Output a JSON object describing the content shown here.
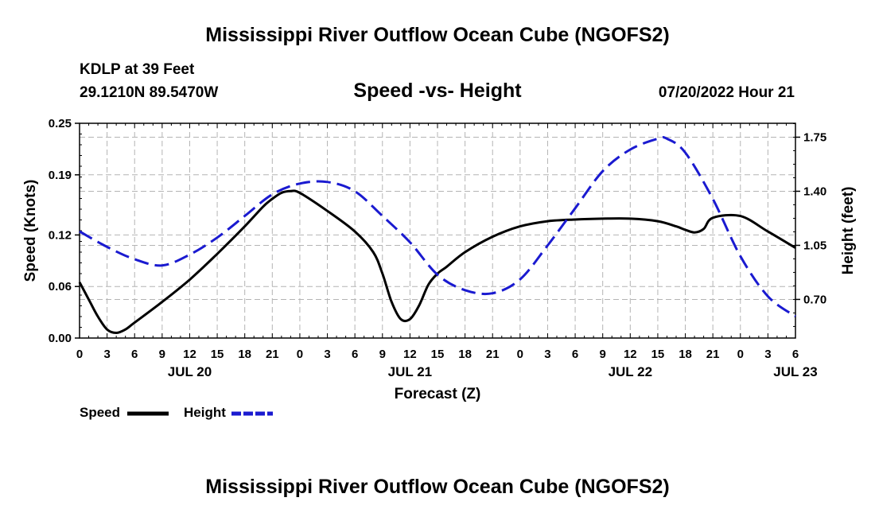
{
  "header": {
    "title": "Mississippi River Outflow Ocean Cube (NGOFS2)",
    "footer_title": "Mississippi River Outflow Ocean Cube (NGOFS2)",
    "station": "KDLP at 39 Feet",
    "coordinates": "29.1210N  89.5470W",
    "subtitle": "Speed -vs- Height",
    "datetime": "07/20/2022 Hour 21"
  },
  "legend": {
    "speed_label": "Speed",
    "height_label": "Height"
  },
  "colors": {
    "speed": "#000000",
    "height": "#1a1ad0",
    "grid": "#b4b4b4"
  },
  "chart_data": {
    "type": "line",
    "xlabel": "Forecast (Z)",
    "ylabel_left": "Speed (Knots)",
    "ylabel_right": "Height (feet)",
    "x_unit": "hours since JUL 20 00Z",
    "xlim": [
      0,
      78
    ],
    "ylim_left": [
      0,
      0.25
    ],
    "ylim_right": [
      0.45,
      1.84
    ],
    "left_ticks": [
      "0.00",
      "0.06",
      "0.12",
      "0.19",
      "0.25"
    ],
    "right_ticks": [
      "0.70",
      "1.05",
      "1.40",
      "1.75"
    ],
    "x_tick_labels": [
      "0",
      "3",
      "6",
      "9",
      "12",
      "15",
      "18",
      "21",
      "0",
      "3",
      "6",
      "9",
      "12",
      "15",
      "18",
      "21",
      "0",
      "3",
      "6",
      "9",
      "12",
      "15",
      "18",
      "21",
      "0",
      "3",
      "6"
    ],
    "day_labels": [
      {
        "hour": 12,
        "label": "JUL 20"
      },
      {
        "hour": 36,
        "label": "JUL 21"
      },
      {
        "hour": 60,
        "label": "JUL 22"
      },
      {
        "hour": 78,
        "label": "JUL 23"
      }
    ],
    "grid": true,
    "series": [
      {
        "name": "Speed",
        "axis": "left",
        "style": "solid",
        "x": [
          0,
          1,
          2,
          3,
          4,
          5,
          6,
          9,
          12,
          15,
          18,
          20,
          21,
          22,
          23,
          24,
          27,
          30,
          32,
          33,
          34,
          35,
          36,
          37,
          38,
          39,
          40,
          42,
          45,
          48,
          51,
          54,
          57,
          60,
          63,
          65,
          66,
          67,
          68,
          69,
          72,
          75,
          78
        ],
        "y": [
          0.065,
          0.045,
          0.025,
          0.01,
          0.006,
          0.01,
          0.018,
          0.042,
          0.068,
          0.098,
          0.13,
          0.153,
          0.162,
          0.169,
          0.171,
          0.169,
          0.148,
          0.124,
          0.1,
          0.075,
          0.042,
          0.022,
          0.022,
          0.038,
          0.062,
          0.075,
          0.083,
          0.1,
          0.118,
          0.13,
          0.136,
          0.138,
          0.139,
          0.139,
          0.136,
          0.13,
          0.126,
          0.123,
          0.127,
          0.14,
          0.142,
          0.124,
          0.105
        ]
      },
      {
        "name": "Height",
        "axis": "right",
        "style": "dashed",
        "x": [
          0,
          3,
          6,
          9,
          12,
          15,
          18,
          21,
          24,
          27,
          30,
          33,
          36,
          39,
          42,
          45,
          48,
          51,
          54,
          57,
          60,
          63,
          64,
          66,
          69,
          72,
          75,
          78
        ],
        "y": [
          1.14,
          1.04,
          0.96,
          0.92,
          0.99,
          1.1,
          1.24,
          1.38,
          1.45,
          1.46,
          1.4,
          1.24,
          1.07,
          0.86,
          0.76,
          0.74,
          0.83,
          1.05,
          1.29,
          1.53,
          1.67,
          1.74,
          1.74,
          1.65,
          1.35,
          0.98,
          0.72,
          0.59
        ]
      }
    ]
  }
}
